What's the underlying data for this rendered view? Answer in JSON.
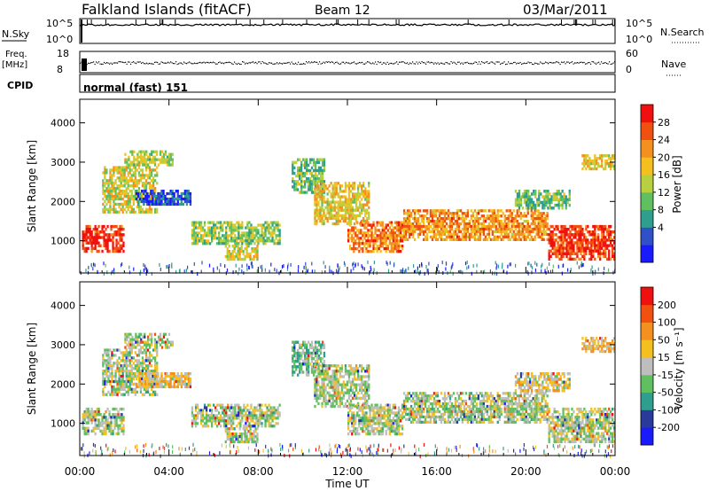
{
  "header": {
    "station": "Falkland Islands (fitACF)",
    "beam": "Beam 12",
    "date": "03/Mar/2011"
  },
  "params": {
    "nsky_label": "N.Sky",
    "nsky_ticks": [
      "10^5",
      "10^0"
    ],
    "nsearch_label": "N.Search",
    "nsearch_ticks": [
      "10^5",
      "10^0"
    ],
    "freq_label": "Freq.",
    "freq_unit": "[MHz]",
    "freq_ticks": [
      "18",
      "8"
    ],
    "nave_label": "Nave",
    "nave_ticks": [
      "60",
      "0"
    ],
    "cpid_label": "CPID",
    "cpid_value": "normal (fast) 151"
  },
  "chart_data": [
    {
      "type": "heatmap",
      "name": "power",
      "ylabel": "Slant Range [km]",
      "yticks": [
        1000,
        2000,
        3000,
        4000
      ],
      "ylim": [
        180,
        4600
      ],
      "xlim": [
        0,
        24
      ],
      "colorbar": {
        "label": "Power [dB]",
        "ticks": [
          "28",
          "24",
          "20",
          "16",
          "12",
          "8",
          "4"
        ],
        "colors": [
          "#1a1aff",
          "#3050c8",
          "#2e9e8e",
          "#60c060",
          "#b8d040",
          "#f4c020",
          "#f49020",
          "#f05010",
          "#f01010"
        ]
      },
      "bands": [
        {
          "t0": 0.1,
          "t1": 2.0,
          "r0": 700,
          "r1": 1400,
          "level": 0.92
        },
        {
          "t0": 1.0,
          "t1": 3.5,
          "r0": 1700,
          "r1": 2900,
          "level": 0.55
        },
        {
          "t0": 2.0,
          "t1": 4.2,
          "r0": 2900,
          "r1": 3300,
          "level": 0.5
        },
        {
          "t0": 2.5,
          "t1": 5.0,
          "r0": 1900,
          "r1": 2300,
          "level": 0.15
        },
        {
          "t0": 5.0,
          "t1": 9.0,
          "r0": 900,
          "r1": 1500,
          "level": 0.45
        },
        {
          "t0": 6.5,
          "t1": 8.0,
          "r0": 500,
          "r1": 900,
          "level": 0.55
        },
        {
          "t0": 9.5,
          "t1": 11.0,
          "r0": 2200,
          "r1": 3100,
          "level": 0.4
        },
        {
          "t0": 10.5,
          "t1": 13.0,
          "r0": 1400,
          "r1": 2500,
          "level": 0.6
        },
        {
          "t0": 12.0,
          "t1": 14.5,
          "r0": 700,
          "r1": 1500,
          "level": 0.75
        },
        {
          "t0": 14.5,
          "t1": 21.0,
          "r0": 1000,
          "r1": 1800,
          "level": 0.72
        },
        {
          "t0": 21.0,
          "t1": 24.0,
          "r0": 500,
          "r1": 1400,
          "level": 0.9
        },
        {
          "t0": 19.5,
          "t1": 22.0,
          "r0": 1800,
          "r1": 2300,
          "level": 0.4
        },
        {
          "t0": 22.5,
          "t1": 24.0,
          "r0": 2800,
          "r1": 3200,
          "level": 0.6
        }
      ]
    },
    {
      "type": "heatmap",
      "name": "velocity",
      "ylabel": "Slant Range [km]",
      "xlabel": "Time UT",
      "yticks": [
        1000,
        2000,
        3000,
        4000
      ],
      "ylim": [
        180,
        4600
      ],
      "xlim": [
        0,
        24
      ],
      "xticks": [
        "00:00",
        "04:00",
        "08:00",
        "12:00",
        "16:00",
        "20:00",
        "00:00"
      ],
      "colorbar": {
        "label": "Velocity [m s⁻¹]",
        "ticks": [
          "200",
          "100",
          "50",
          "15",
          "-15",
          "-50",
          "-100",
          "-200"
        ],
        "colors": [
          "#1a1aff",
          "#2a3a9a",
          "#2e9e8e",
          "#60c060",
          "#bebebe",
          "#f4c020",
          "#f49020",
          "#f05010",
          "#f01010"
        ]
      },
      "bands": [
        {
          "t0": 0.1,
          "t1": 2.0,
          "r0": 700,
          "r1": 1400,
          "level": 0.5
        },
        {
          "t0": 1.0,
          "t1": 3.5,
          "r0": 1700,
          "r1": 2900,
          "level": 0.5
        },
        {
          "t0": 2.0,
          "t1": 4.2,
          "r0": 2900,
          "r1": 3300,
          "level": 0.5
        },
        {
          "t0": 2.5,
          "t1": 5.0,
          "r0": 1900,
          "r1": 2300,
          "level": 0.62
        },
        {
          "t0": 5.0,
          "t1": 9.0,
          "r0": 900,
          "r1": 1500,
          "level": 0.5
        },
        {
          "t0": 6.5,
          "t1": 8.0,
          "r0": 500,
          "r1": 900,
          "level": 0.5
        },
        {
          "t0": 9.5,
          "t1": 11.0,
          "r0": 2200,
          "r1": 3100,
          "level": 0.42
        },
        {
          "t0": 10.5,
          "t1": 13.0,
          "r0": 1400,
          "r1": 2500,
          "level": 0.5
        },
        {
          "t0": 12.0,
          "t1": 14.5,
          "r0": 700,
          "r1": 1500,
          "level": 0.5
        },
        {
          "t0": 14.5,
          "t1": 21.0,
          "r0": 1000,
          "r1": 1800,
          "level": 0.5
        },
        {
          "t0": 21.0,
          "t1": 24.0,
          "r0": 500,
          "r1": 1400,
          "level": 0.52
        },
        {
          "t0": 19.5,
          "t1": 22.0,
          "r0": 1800,
          "r1": 2300,
          "level": 0.6
        },
        {
          "t0": 22.5,
          "t1": 24.0,
          "r0": 2800,
          "r1": 3200,
          "level": 0.62
        }
      ]
    }
  ]
}
